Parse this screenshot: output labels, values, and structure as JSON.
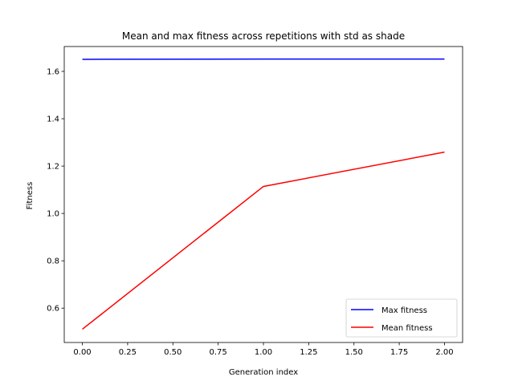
{
  "chart_data": {
    "type": "line",
    "title": "Mean and max fitness across repetitions with std as shade",
    "xlabel": "Generation index",
    "ylabel": "Fitness",
    "xlim": [
      -0.1,
      2.1
    ],
    "ylim": [
      0.455,
      1.705
    ],
    "x_ticks": [
      0.0,
      0.25,
      0.5,
      0.75,
      1.0,
      1.25,
      1.5,
      1.75,
      2.0
    ],
    "x_tick_labels": [
      "0.00",
      "0.25",
      "0.50",
      "0.75",
      "1.00",
      "1.25",
      "1.50",
      "1.75",
      "2.00"
    ],
    "y_ticks": [
      0.6,
      0.8,
      1.0,
      1.2,
      1.4,
      1.6
    ],
    "y_tick_labels": [
      "0.6",
      "0.8",
      "1.0",
      "1.2",
      "1.4",
      "1.6"
    ],
    "x": [
      0,
      1,
      2
    ],
    "series": [
      {
        "name": "Max fitness",
        "color": "#0000ff",
        "values": [
          1.651,
          1.652,
          1.652
        ]
      },
      {
        "name": "Mean fitness",
        "color": "#ff0000",
        "values": [
          0.511,
          1.114,
          1.259
        ]
      }
    ],
    "legend_position": "lower-right",
    "grid": false
  }
}
